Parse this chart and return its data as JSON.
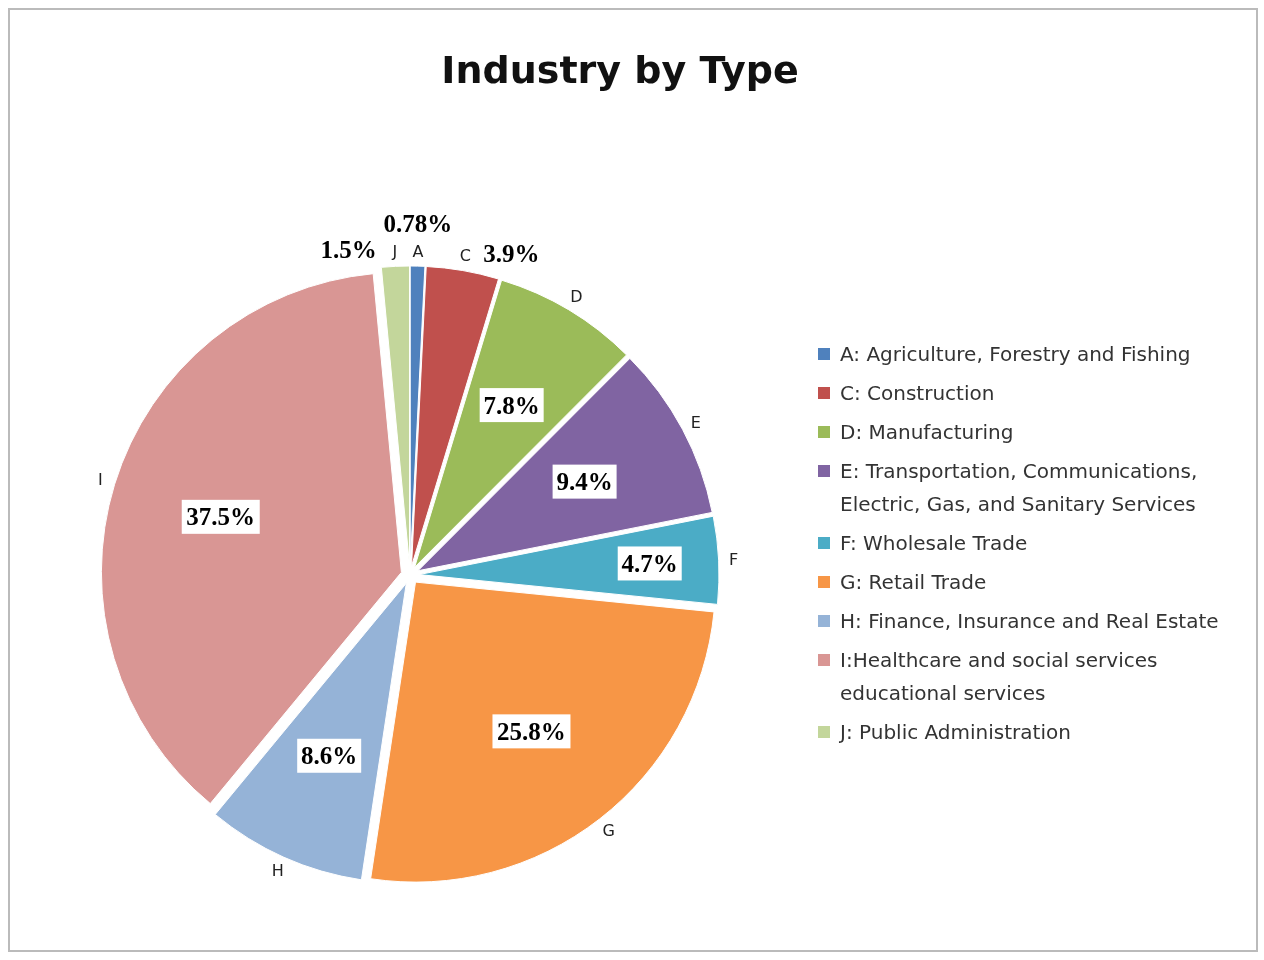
{
  "chart_data": {
    "type": "pie",
    "title": "Industry by Type",
    "categories": [
      "A: Agriculture, Forestry and Fishing",
      "C: Construction",
      "D: Manufacturing",
      "E: Transportation, Communications, Electric, Gas, and Sanitary Services",
      "F: Wholesale Trade",
      "G: Retail Trade",
      "H: Finance, Insurance and Real Estate",
      "I:Healthcare and social services educational services",
      "J: Public Administration"
    ],
    "values": [
      0.78,
      3.9,
      7.8,
      9.4,
      4.7,
      25.8,
      8.6,
      37.5,
      1.5
    ],
    "colors": [
      "#4f81bd",
      "#c0504d",
      "#9bbb59",
      "#8064a2",
      "#4bacc6",
      "#f79646",
      "#95b3d7",
      "#d99694",
      "#c3d69b"
    ],
    "value_labels": [
      "0.78%",
      "3.9%",
      "7.8%",
      "9.4%",
      "4.7%",
      "25.8%",
      "8.6%",
      "37.5%",
      "1.5%"
    ],
    "annotations": [
      "A",
      "C",
      "D",
      "E",
      "F",
      "G",
      "H",
      "I",
      "J"
    ],
    "legend": "right"
  }
}
